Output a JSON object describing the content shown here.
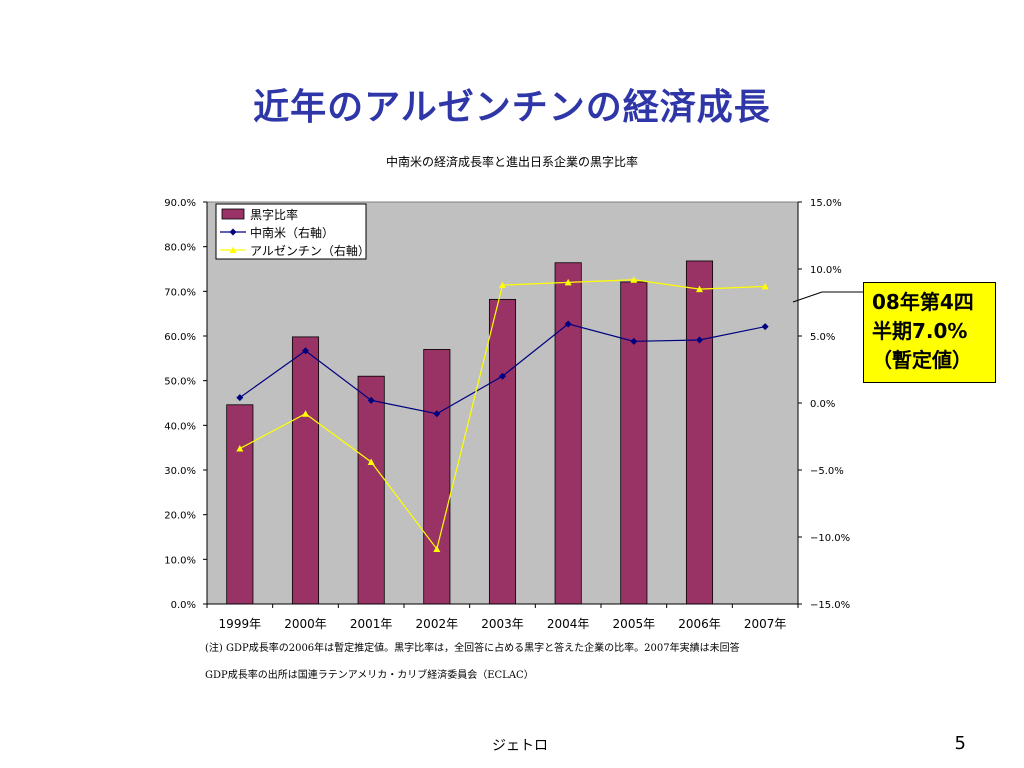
{
  "slide": {
    "title": "近年のアルゼンチンの経済成長",
    "footer_org": "ジェトロ",
    "page_number": "5"
  },
  "callout": {
    "text": "08年第4四\n半期7.0%\n（暫定値）",
    "color": "#ffff00"
  },
  "notes": {
    "line1": "(注)  GDP成長率の2006年は暫定推定値。黒字比率は，全回答に占める黒字と答えた企業の比率。2007年実績は未回答",
    "line2": "GDP成長率の出所は国連ラテンアメリカ・カリブ経済委員会（ECLAC）"
  },
  "chart_data": {
    "type": "bar",
    "title": "中南米の経済成長率と進出日系企業の黒字比率",
    "categories": [
      "1999年",
      "2000年",
      "2001年",
      "2002年",
      "2003年",
      "2004年",
      "2005年",
      "2006年",
      "2007年"
    ],
    "y_left": {
      "min": 0,
      "max": 90,
      "step": 10,
      "ticks": [
        "0.0%",
        "10.0%",
        "20.0%",
        "30.0%",
        "40.0%",
        "50.0%",
        "60.0%",
        "70.0%",
        "80.0%",
        "90.0%"
      ]
    },
    "y_right": {
      "min": -15,
      "max": 15,
      "step": 5,
      "ticks": [
        "−15.0%",
        "−10.0%",
        "−5.0%",
        "0.0%",
        "5.0%",
        "10.0%",
        "15.0%"
      ]
    },
    "grid": false,
    "legend_position": "top-left",
    "plot_background": "#c0c0c0",
    "series": [
      {
        "name": "黒字比率",
        "type": "bar",
        "axis": "left",
        "color": "#993366",
        "values": [
          44.6,
          59.8,
          51.0,
          57.0,
          68.2,
          76.4,
          72.1,
          76.8,
          null
        ]
      },
      {
        "name": "中南米（右軸）",
        "type": "line",
        "axis": "right",
        "color": "#000080",
        "marker": "diamond",
        "values": [
          0.4,
          3.9,
          0.2,
          -0.8,
          2.0,
          5.9,
          4.6,
          4.7,
          5.7
        ]
      },
      {
        "name": "アルゼンチン（右軸）",
        "type": "line",
        "axis": "right",
        "color": "#ffff00",
        "marker": "triangle",
        "values": [
          -3.4,
          -0.8,
          -4.4,
          -10.9,
          8.8,
          9.0,
          9.2,
          8.5,
          8.7
        ]
      }
    ]
  }
}
